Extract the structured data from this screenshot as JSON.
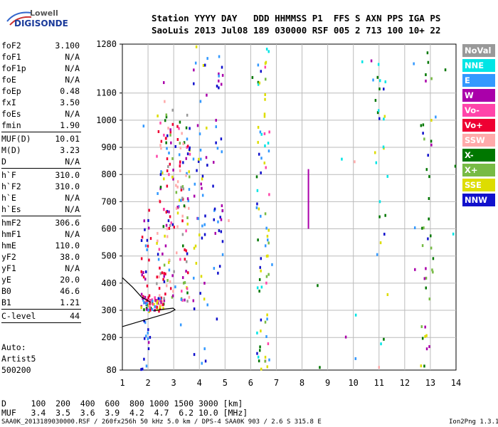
{
  "logo": {
    "line1": "Lowell",
    "line2": "DIGISONDE"
  },
  "header": {
    "row1": "Station YYYY DAY   DDD HHMMSS P1  FFS S AXN PPS IGA PS",
    "row2": "SaoLuis 2013 Jul08 189 030000 RSF 005 2 713 100 10+ 22"
  },
  "params_group1": [
    {
      "label": "foF2",
      "value": "3.100"
    },
    {
      "label": "foF1",
      "value": "N/A"
    },
    {
      "label": "foF1p",
      "value": "N/A"
    },
    {
      "label": "foE",
      "value": "N/A"
    },
    {
      "label": "foEp",
      "value": "0.48"
    },
    {
      "label": "fxI",
      "value": "3.50"
    },
    {
      "label": "foEs",
      "value": "N/A"
    },
    {
      "label": "fmin",
      "value": "1.90"
    }
  ],
  "params_group2": [
    {
      "label": "MUF(D)",
      "value": "10.01"
    },
    {
      "label": "M(D)",
      "value": "3.23"
    },
    {
      "label": "D",
      "value": "N/A"
    }
  ],
  "params_group3": [
    {
      "label": "h`F",
      "value": "310.0"
    },
    {
      "label": "h`F2",
      "value": "310.0"
    },
    {
      "label": "h`E",
      "value": "N/A"
    },
    {
      "label": "h`Es",
      "value": "N/A"
    }
  ],
  "params_group4": [
    {
      "label": "hmF2",
      "value": "306.6"
    },
    {
      "label": "hmF1",
      "value": "N/A"
    },
    {
      "label": "hmE",
      "value": "110.0"
    },
    {
      "label": "yF2",
      "value": "38.0"
    },
    {
      "label": "yF1",
      "value": "N/A"
    },
    {
      "label": "yE",
      "value": "20.0"
    },
    {
      "label": "B0",
      "value": "46.6"
    },
    {
      "label": "B1",
      "value": "1.21"
    }
  ],
  "params_group5": [
    {
      "label": "C-level",
      "value": "44"
    }
  ],
  "auto": {
    "line1": "Auto:",
    "line2": "Artist5",
    "line3": "500200"
  },
  "legend": [
    {
      "label": "NoVal",
      "color": "#999999"
    },
    {
      "label": "NNE",
      "color": "#00e5e5"
    },
    {
      "label": "E",
      "color": "#3399ff"
    },
    {
      "label": "W",
      "color": "#aa00aa"
    },
    {
      "label": "Vo-",
      "color": "#ff44aa"
    },
    {
      "label": "Vo+",
      "color": "#ee0033"
    },
    {
      "label": "SSW",
      "color": "#ffaaaa"
    },
    {
      "label": "X-",
      "color": "#007700"
    },
    {
      "label": "X+",
      "color": "#77bb44"
    },
    {
      "label": "SSE",
      "color": "#dddd00"
    },
    {
      "label": "NNW",
      "color": "#1111cc"
    }
  ],
  "bottom": {
    "d_row": "D     100  200  400  600  800 1000 1500 3000 [km]",
    "muf_row": "MUF   3.4  3.5  3.6  3.9  4.2  4.7  6.2 10.0 [MHz]"
  },
  "footer": {
    "left": "SAA0K_2013189030000.RSF / 260fx256h 50 kHz 5.0 km / DPS-4 SAA0K 903 / 2.6 S 315.8 E",
    "right": "Ion2Png 1.3.17"
  },
  "chart_data": {
    "type": "scatter",
    "title": "",
    "xlabel": "",
    "ylabel": "",
    "xlim": [
      1,
      14
    ],
    "ylim": [
      80,
      1280
    ],
    "x_ticks": [
      1,
      2,
      3,
      4,
      5,
      6,
      7,
      8,
      9,
      10,
      11,
      12,
      13,
      14
    ],
    "y_ticks": [
      80,
      200,
      300,
      400,
      500,
      600,
      700,
      800,
      900,
      1000,
      1100,
      1280
    ],
    "grid": true,
    "legend_position": "right",
    "trace_curves": [
      {
        "points": [
          [
            1.0,
            240
          ],
          [
            2.0,
            268
          ],
          [
            2.5,
            282
          ],
          [
            2.85,
            292
          ],
          [
            3.05,
            302
          ],
          [
            2.98,
            308
          ],
          [
            2.6,
            304
          ],
          [
            2.2,
            298
          ]
        ]
      },
      {
        "points": [
          [
            1.0,
            420
          ],
          [
            1.4,
            385
          ],
          [
            1.75,
            348
          ],
          [
            2.1,
            330
          ]
        ]
      }
    ],
    "vertical_trace": {
      "x": 8.25,
      "y_range": [
        600,
        820
      ],
      "color": "#aa00aa"
    },
    "echo_regions": [
      {
        "x": [
          1.7,
          2.6
        ],
        "y": [
          300,
          360
        ],
        "weight": 70,
        "colors": [
          "#ee0033",
          "#ee0033",
          "#ff44aa",
          "#ffaaaa",
          "#dddd00",
          "#aa00aa",
          "#007700",
          "#3399ff"
        ]
      },
      {
        "x": [
          2.3,
          3.6
        ],
        "y": [
          330,
          1050
        ],
        "weight": 180,
        "colors": [
          "#ee0033",
          "#ee0033",
          "#ee0033",
          "#ff44aa",
          "#ffaaaa",
          "#ffaaaa",
          "#dddd00",
          "#aa00aa",
          "#77bb44",
          "#007700",
          "#1111cc",
          "#3399ff",
          "#999999"
        ]
      },
      {
        "x": [
          1.7,
          2.1
        ],
        "y": [
          80,
          700
        ],
        "weight": 40,
        "colors": [
          "#1111cc",
          "#aa00aa",
          "#3399ff",
          "#ee0033"
        ]
      },
      {
        "x": [
          3.7,
          4.3
        ],
        "y": [
          100,
          1280
        ],
        "weight": 50,
        "colors": [
          "#1111cc",
          "#aa00aa",
          "#3399ff",
          "#dddd00"
        ]
      },
      {
        "x": [
          4.5,
          4.9
        ],
        "y": [
          200,
          1280
        ],
        "weight": 35,
        "colors": [
          "#1111cc",
          "#aa00aa",
          "#3399ff"
        ]
      },
      {
        "x": [
          6.2,
          6.4
        ],
        "y": [
          80,
          1250
        ],
        "weight": 35,
        "colors": [
          "#1111cc",
          "#3399ff",
          "#00e5e5",
          "#dddd00",
          "#007700"
        ]
      },
      {
        "x": [
          6.5,
          6.7
        ],
        "y": [
          80,
          1280
        ],
        "weight": 40,
        "colors": [
          "#dddd00",
          "#00e5e5",
          "#3399ff",
          "#77bb44",
          "#ff44aa"
        ]
      },
      {
        "x": [
          10.8,
          11.3
        ],
        "y": [
          180,
          1270
        ],
        "weight": 25,
        "colors": [
          "#007700",
          "#1111cc",
          "#00e5e5",
          "#dddd00"
        ]
      },
      {
        "x": [
          12.6,
          13.1
        ],
        "y": [
          80,
          1270
        ],
        "weight": 40,
        "colors": [
          "#dddd00",
          "#007700",
          "#1111cc",
          "#aa00aa",
          "#77bb44"
        ]
      },
      {
        "x": [
          1.0,
          14.0
        ],
        "y": [
          80,
          1280
        ],
        "weight": 30,
        "colors": [
          "#3399ff",
          "#aa00aa",
          "#007700",
          "#00e5e5",
          "#ffaaaa"
        ]
      }
    ]
  }
}
